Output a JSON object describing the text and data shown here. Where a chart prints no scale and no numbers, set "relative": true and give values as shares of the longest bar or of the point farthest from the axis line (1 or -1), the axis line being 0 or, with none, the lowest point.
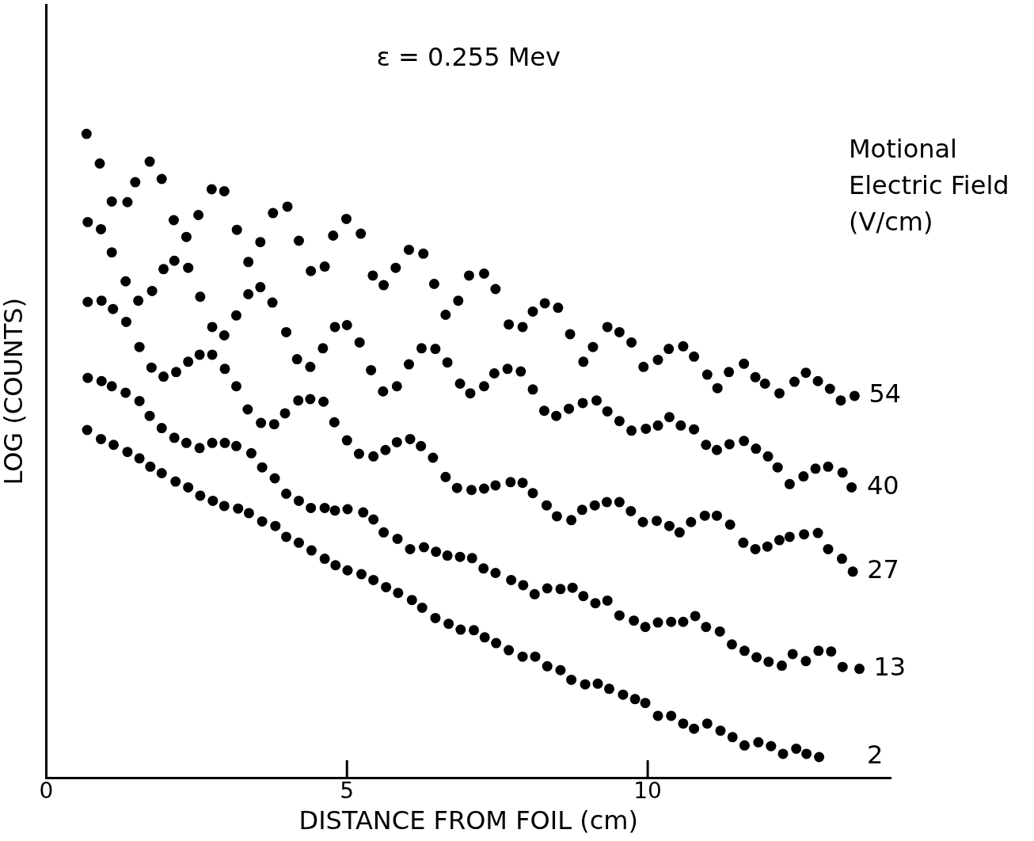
{
  "chart_data": {
    "type": "scatter",
    "title": "ε = 0.255 Mev",
    "xlabel": "DISTANCE FROM FOIL (cm)",
    "ylabel": "LOG (COUNTS)",
    "legend_title": "Motional Electric Field (V/cm)",
    "relative": true,
    "marker": "circle",
    "legend": false,
    "xlim": [
      0,
      14.04
    ],
    "xticks": [
      0,
      5,
      10
    ],
    "series": [
      {
        "name": "54",
        "color": "#000000",
        "x": [
          0.67,
          0.89,
          1.09,
          1.35,
          1.48,
          1.72,
          1.92,
          2.12,
          2.33,
          2.53,
          2.75,
          2.96,
          3.17,
          3.36,
          3.56,
          3.77,
          4.01,
          4.2,
          4.4,
          4.63,
          4.77,
          4.99,
          5.23,
          5.43,
          5.61,
          5.81,
          6.03,
          6.27,
          6.45,
          6.64,
          6.85,
          7.03,
          7.28,
          7.47,
          7.69,
          7.92,
          8.09,
          8.29,
          8.51,
          8.71,
          8.93,
          9.09,
          9.33,
          9.53,
          9.73,
          9.93,
          10.17,
          10.35,
          10.59,
          10.77,
          10.99,
          11.16,
          11.35,
          11.6,
          11.79,
          11.95,
          12.19,
          12.44,
          12.63,
          12.83,
          13.03,
          13.21,
          13.44
        ],
        "values": [
          1,
          0.954,
          0.895,
          0.894,
          0.925,
          0.957,
          0.93,
          0.866,
          0.84,
          0.874,
          0.914,
          0.911,
          0.851,
          0.801,
          0.832,
          0.877,
          0.887,
          0.834,
          0.787,
          0.794,
          0.842,
          0.868,
          0.845,
          0.78,
          0.765,
          0.792,
          0.82,
          0.814,
          0.767,
          0.719,
          0.741,
          0.78,
          0.783,
          0.759,
          0.704,
          0.7,
          0.724,
          0.737,
          0.73,
          0.689,
          0.646,
          0.669,
          0.7,
          0.692,
          0.676,
          0.638,
          0.649,
          0.666,
          0.67,
          0.654,
          0.626,
          0.605,
          0.63,
          0.643,
          0.622,
          0.612,
          0.597,
          0.615,
          0.629,
          0.616,
          0.604,
          0.586,
          0.593
        ]
      },
      {
        "name": "40",
        "color": "#000000",
        "x": [
          0.69,
          0.91,
          1.09,
          1.32,
          1.53,
          1.76,
          1.95,
          2.13,
          2.36,
          2.56,
          2.76,
          2.96,
          3.16,
          3.36,
          3.56,
          3.76,
          3.99,
          4.17,
          4.39,
          4.6,
          4.8,
          5,
          5.21,
          5.4,
          5.6,
          5.83,
          6.03,
          6.24,
          6.47,
          6.67,
          6.88,
          7.05,
          7.28,
          7.45,
          7.67,
          7.89,
          8.09,
          8.28,
          8.48,
          8.69,
          8.92,
          9.15,
          9.33,
          9.53,
          9.73,
          9.97,
          10.17,
          10.36,
          10.55,
          10.77,
          10.97,
          11.15,
          11.36,
          11.6,
          11.8,
          12,
          12.16,
          12.36,
          12.59,
          12.79,
          13,
          13.24,
          13.39
        ],
        "values": [
          0.863,
          0.852,
          0.816,
          0.771,
          0.741,
          0.756,
          0.79,
          0.803,
          0.792,
          0.747,
          0.7,
          0.687,
          0.718,
          0.751,
          0.762,
          0.738,
          0.692,
          0.65,
          0.638,
          0.667,
          0.7,
          0.703,
          0.676,
          0.633,
          0.6,
          0.608,
          0.642,
          0.667,
          0.666,
          0.645,
          0.612,
          0.597,
          0.608,
          0.628,
          0.635,
          0.631,
          0.603,
          0.57,
          0.562,
          0.573,
          0.582,
          0.586,
          0.569,
          0.554,
          0.539,
          0.542,
          0.547,
          0.56,
          0.547,
          0.541,
          0.517,
          0.509,
          0.518,
          0.523,
          0.511,
          0.499,
          0.482,
          0.456,
          0.468,
          0.48,
          0.483,
          0.474,
          0.451
        ]
      },
      {
        "name": "27",
        "color": "#000000",
        "x": [
          0.69,
          0.92,
          1.11,
          1.33,
          1.55,
          1.75,
          1.95,
          2.16,
          2.36,
          2.55,
          2.76,
          2.97,
          3.16,
          3.35,
          3.57,
          3.79,
          3.97,
          4.19,
          4.39,
          4.61,
          4.79,
          5,
          5.2,
          5.44,
          5.64,
          5.83,
          6.05,
          6.23,
          6.43,
          6.64,
          6.83,
          7.07,
          7.28,
          7.47,
          7.72,
          7.92,
          8.09,
          8.32,
          8.49,
          8.73,
          8.91,
          9.12,
          9.32,
          9.53,
          9.72,
          9.92,
          10.15,
          10.36,
          10.53,
          10.72,
          10.95,
          11.15,
          11.37,
          11.59,
          11.79,
          11.99,
          12.19,
          12.36,
          12.6,
          12.83,
          13,
          13.23,
          13.41
        ],
        "values": [
          0.739,
          0.741,
          0.728,
          0.708,
          0.669,
          0.637,
          0.623,
          0.63,
          0.646,
          0.657,
          0.657,
          0.635,
          0.608,
          0.572,
          0.551,
          0.549,
          0.566,
          0.586,
          0.588,
          0.584,
          0.552,
          0.524,
          0.503,
          0.499,
          0.509,
          0.521,
          0.526,
          0.515,
          0.497,
          0.467,
          0.45,
          0.447,
          0.449,
          0.454,
          0.459,
          0.458,
          0.442,
          0.423,
          0.406,
          0.4,
          0.416,
          0.423,
          0.428,
          0.428,
          0.414,
          0.397,
          0.399,
          0.391,
          0.381,
          0.397,
          0.407,
          0.407,
          0.393,
          0.365,
          0.355,
          0.359,
          0.369,
          0.374,
          0.378,
          0.38,
          0.355,
          0.34,
          0.32
        ]
      },
      {
        "name": "13",
        "color": "#000000",
        "x": [
          0.69,
          0.92,
          1.09,
          1.32,
          1.55,
          1.72,
          1.92,
          2.13,
          2.33,
          2.55,
          2.76,
          2.97,
          3.16,
          3.41,
          3.59,
          3.8,
          3.99,
          4.2,
          4.4,
          4.63,
          4.8,
          5.01,
          5.27,
          5.44,
          5.61,
          5.84,
          6.05,
          6.28,
          6.48,
          6.67,
          6.88,
          7.08,
          7.27,
          7.47,
          7.73,
          7.93,
          8.12,
          8.33,
          8.55,
          8.75,
          8.93,
          9.13,
          9.33,
          9.53,
          9.77,
          9.96,
          10.17,
          10.39,
          10.59,
          10.79,
          10.97,
          11.2,
          11.4,
          11.61,
          11.81,
          12.01,
          12.23,
          12.41,
          12.63,
          12.84,
          13.05,
          13.24,
          13.52
        ],
        "values": [
          0.621,
          0.616,
          0.608,
          0.598,
          0.585,
          0.562,
          0.543,
          0.528,
          0.52,
          0.512,
          0.52,
          0.52,
          0.515,
          0.504,
          0.482,
          0.465,
          0.441,
          0.43,
          0.419,
          0.419,
          0.415,
          0.417,
          0.412,
          0.401,
          0.381,
          0.371,
          0.355,
          0.358,
          0.351,
          0.345,
          0.343,
          0.341,
          0.325,
          0.318,
          0.307,
          0.299,
          0.285,
          0.294,
          0.293,
          0.295,
          0.282,
          0.271,
          0.275,
          0.252,
          0.244,
          0.234,
          0.241,
          0.242,
          0.242,
          0.251,
          0.234,
          0.227,
          0.207,
          0.197,
          0.187,
          0.18,
          0.174,
          0.192,
          0.181,
          0.197,
          0.196,
          0.172,
          0.169
        ]
      },
      {
        "name": "2",
        "color": "#000000",
        "x": [
          0.68,
          0.91,
          1.12,
          1.35,
          1.55,
          1.73,
          1.92,
          2.15,
          2.36,
          2.56,
          2.77,
          2.96,
          3.19,
          3.37,
          3.59,
          3.81,
          3.99,
          4.2,
          4.41,
          4.63,
          4.81,
          5.01,
          5.24,
          5.44,
          5.65,
          5.85,
          6.08,
          6.25,
          6.47,
          6.69,
          6.89,
          7.11,
          7.29,
          7.48,
          7.69,
          7.92,
          8.13,
          8.33,
          8.55,
          8.73,
          8.96,
          9.17,
          9.36,
          9.59,
          9.79,
          9.96,
          10.17,
          10.39,
          10.59,
          10.77,
          10.99,
          11.21,
          11.41,
          11.61,
          11.84,
          12.05,
          12.25,
          12.47,
          12.64,
          12.85
        ],
        "values": [
          0.54,
          0.526,
          0.517,
          0.506,
          0.496,
          0.483,
          0.473,
          0.46,
          0.451,
          0.438,
          0.43,
          0.422,
          0.418,
          0.411,
          0.398,
          0.391,
          0.374,
          0.365,
          0.353,
          0.34,
          0.33,
          0.322,
          0.316,
          0.307,
          0.296,
          0.287,
          0.276,
          0.264,
          0.248,
          0.239,
          0.23,
          0.229,
          0.218,
          0.209,
          0.198,
          0.188,
          0.188,
          0.173,
          0.167,
          0.152,
          0.145,
          0.146,
          0.138,
          0.129,
          0.122,
          0.116,
          0.096,
          0.096,
          0.084,
          0.076,
          0.084,
          0.073,
          0.063,
          0.05,
          0.055,
          0.049,
          0.037,
          0.045,
          0.037,
          0.032
        ]
      }
    ]
  }
}
